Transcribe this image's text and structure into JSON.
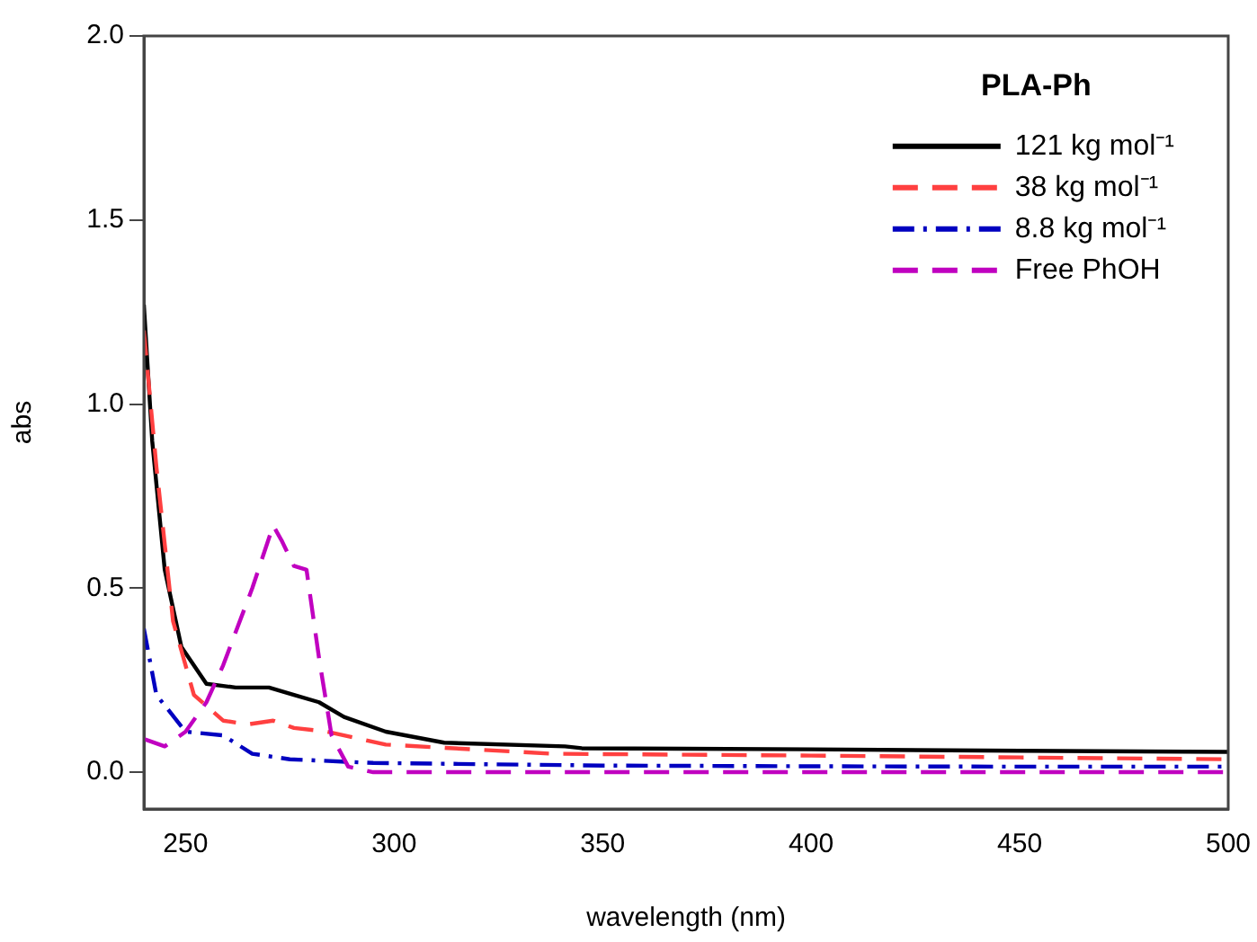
{
  "chart_data": {
    "type": "line",
    "xlabel": "wavelength (nm)",
    "ylabel": "abs",
    "legend_title": "PLA-Ph",
    "legend": "top right",
    "grid": false,
    "marker": "none",
    "xlim": [
      240,
      500
    ],
    "xticks": [
      250,
      300,
      350,
      400,
      450,
      500
    ],
    "ylim": [
      -0.1,
      2.0
    ],
    "yticks": [
      {
        "value": 0,
        "label": "0.0"
      },
      {
        "value": 0.5,
        "label": "0.5"
      },
      {
        "value": 1,
        "label": "1.0"
      },
      {
        "value": 1.5,
        "label": "1.5"
      },
      {
        "value": 2,
        "label": "2.0"
      }
    ],
    "series": [
      {
        "name": "121 kg mol⁻¹",
        "color": "#000000",
        "line_style": "solid",
        "x": [
          240,
          242,
          245,
          249,
          255,
          262,
          270,
          276,
          282,
          288,
          298,
          312,
          341,
          345,
          400,
          450,
          500
        ],
        "values": [
          1.27,
          0.9,
          0.55,
          0.34,
          0.24,
          0.23,
          0.23,
          0.21,
          0.19,
          0.15,
          0.11,
          0.08,
          0.07,
          0.065,
          0.062,
          0.058,
          0.055
        ]
      },
      {
        "name": "38 kg mol⁻¹",
        "color": "#ff4040",
        "line_style": "dashed",
        "x": [
          240,
          243,
          247,
          252,
          259,
          265,
          271,
          276,
          284,
          298,
          338,
          400,
          450,
          500
        ],
        "values": [
          1.2,
          0.83,
          0.41,
          0.21,
          0.14,
          0.13,
          0.14,
          0.12,
          0.11,
          0.075,
          0.05,
          0.045,
          0.04,
          0.035
        ]
      },
      {
        "name": "8.8 kg mol⁻¹",
        "color": "#0000c0",
        "line_style": "dashdot",
        "x": [
          240,
          243,
          250,
          259,
          266,
          275,
          295,
          350,
          400,
          450,
          500
        ],
        "values": [
          0.39,
          0.21,
          0.11,
          0.1,
          0.05,
          0.035,
          0.025,
          0.018,
          0.016,
          0.015,
          0.015
        ]
      },
      {
        "name": "Free PhOH",
        "color": "#c000c0",
        "line_style": "dashed",
        "x": [
          240,
          245,
          250,
          255,
          259,
          266,
          271,
          273,
          276,
          279,
          282,
          285,
          289,
          295,
          350,
          400,
          450,
          500
        ],
        "values": [
          0.09,
          0.07,
          0.11,
          0.19,
          0.29,
          0.5,
          0.67,
          0.63,
          0.56,
          0.55,
          0.31,
          0.1,
          0.015,
          0.0,
          0.0,
          0.0,
          0.0,
          0.0
        ]
      }
    ]
  }
}
